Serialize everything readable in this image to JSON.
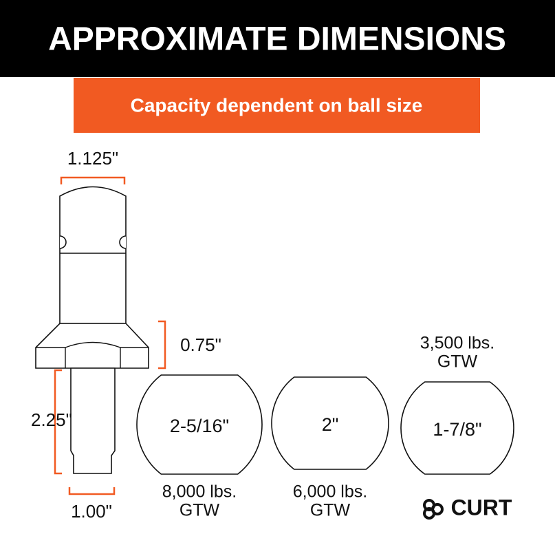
{
  "header": {
    "title": "APPROXIMATE DIMENSIONS"
  },
  "banner": {
    "text": "Capacity dependent on ball size"
  },
  "dimensions": {
    "top_width": "1.125\"",
    "collar_height": "0.75\"",
    "shank_length": "2.25\"",
    "shank_diameter": "1.00\""
  },
  "balls": [
    {
      "size": "2-5/16\"",
      "capacity": "8,000 lbs.",
      "unit": "GTW"
    },
    {
      "size": "2\"",
      "capacity": "6,000 lbs.",
      "unit": "GTW"
    },
    {
      "size": "1-7/8\"",
      "capacity": "3,500 lbs.",
      "unit": "GTW"
    }
  ],
  "logo": {
    "text": "CURT"
  }
}
